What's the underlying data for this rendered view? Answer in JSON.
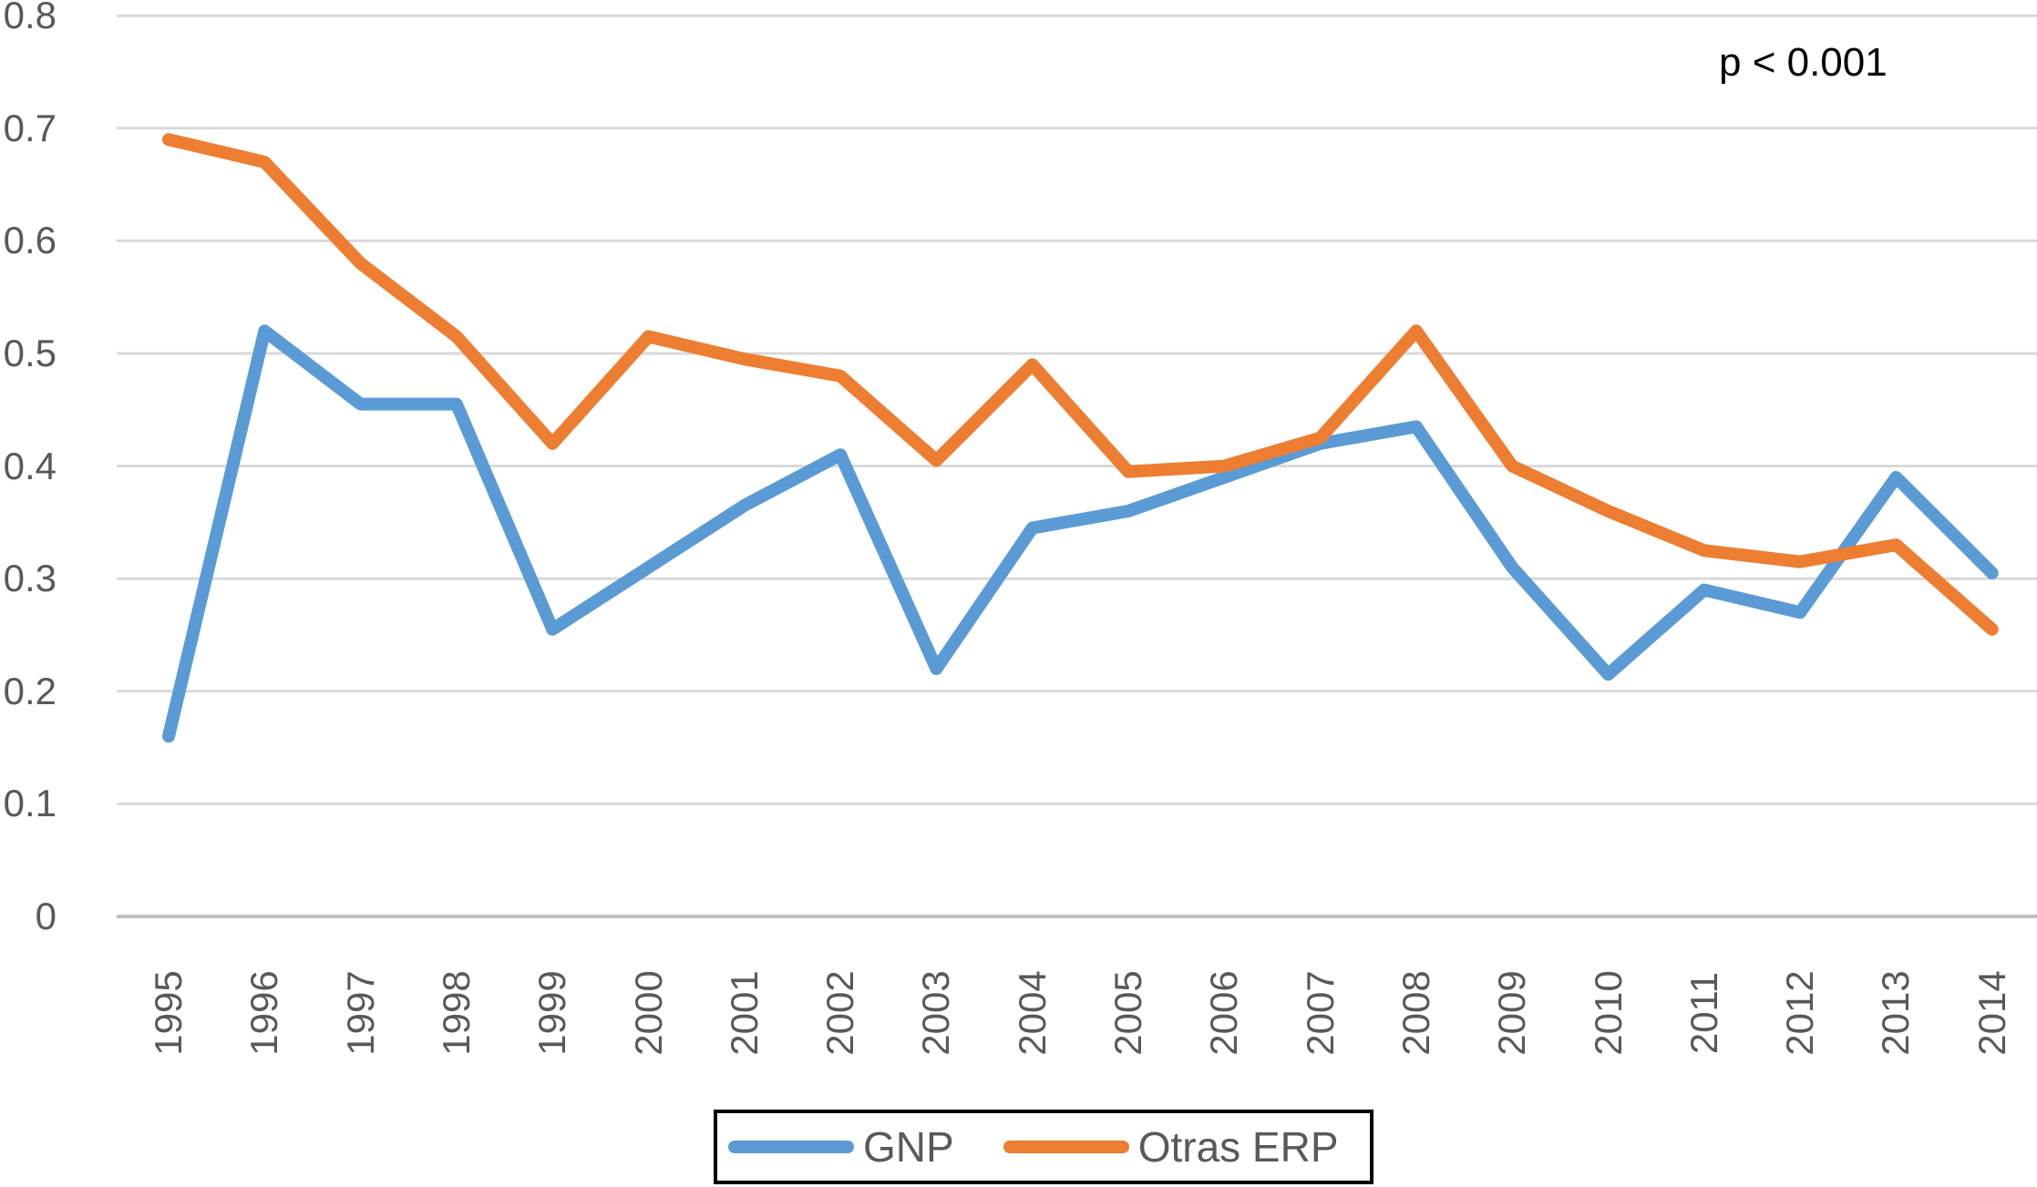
{
  "chart_data": {
    "type": "line",
    "title": "",
    "xlabel": "",
    "ylabel": "",
    "categories": [
      "1995",
      "1996",
      "1997",
      "1998",
      "1999",
      "2000",
      "2001",
      "2002",
      "2003",
      "2004",
      "2005",
      "2006",
      "2007",
      "2008",
      "2009",
      "2010",
      "2011",
      "2012",
      "2013",
      "2014"
    ],
    "series": [
      {
        "name": "GNP",
        "color": "#5B9BD5",
        "values": [
          0.16,
          0.52,
          0.455,
          0.455,
          0.255,
          0.31,
          0.365,
          0.41,
          0.22,
          0.345,
          0.36,
          0.39,
          0.42,
          0.435,
          0.31,
          0.215,
          0.29,
          0.27,
          0.39,
          0.305
        ]
      },
      {
        "name": "Otras ERP",
        "color": "#ED7D31",
        "values": [
          0.69,
          0.67,
          0.58,
          0.515,
          0.42,
          0.515,
          0.495,
          0.48,
          0.405,
          0.49,
          0.395,
          0.4,
          0.425,
          0.52,
          0.4,
          0.36,
          0.325,
          0.315,
          0.33,
          0.255
        ]
      }
    ],
    "ylim": [
      0,
      0.8
    ],
    "y_ticks": [
      "0.8",
      "0.7",
      "0.6",
      "0.5",
      "0.4",
      "0.3",
      "0.2",
      "0.1",
      "0"
    ],
    "grid": true,
    "grid_color": "#D9D9D9",
    "axis_line_color": "#BFBFBF",
    "tick_label_color": "#595959",
    "legend_position": "bottom",
    "legend_border_color": "#000000",
    "annotation": "p < 0.001",
    "annotation_color": "#000000"
  }
}
